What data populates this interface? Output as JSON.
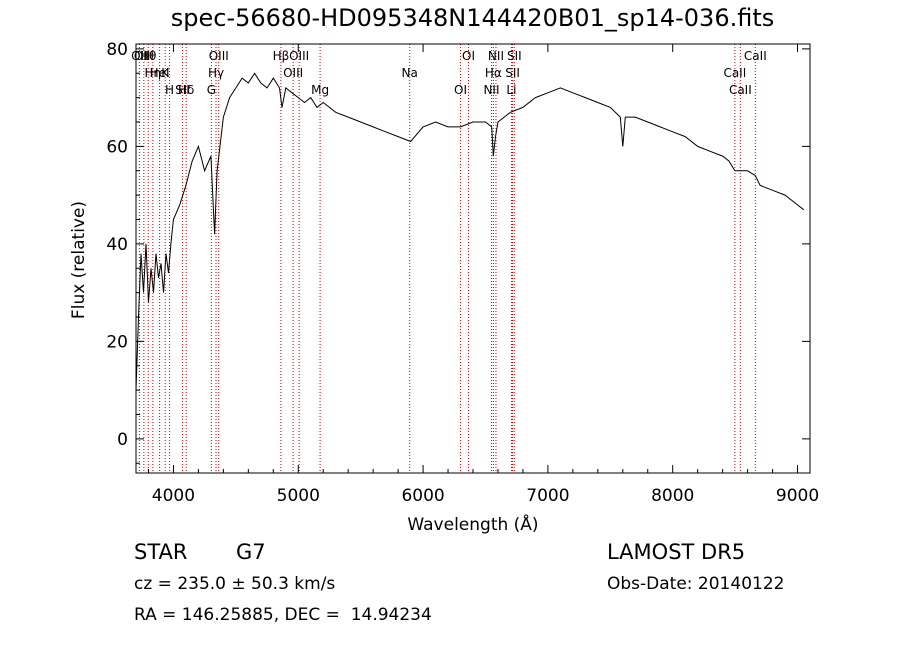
{
  "chart_data": {
    "type": "line",
    "title": "spec-56680-HD095348N144420B01_sp14-036.fits",
    "xlabel": "Wavelength (Å)",
    "ylabel": "Flux (relative)",
    "xlim": [
      3700,
      9100
    ],
    "ylim": [
      -7,
      81
    ],
    "x_ticks": [
      4000,
      5000,
      6000,
      7000,
      8000,
      9000
    ],
    "y_ticks": [
      0,
      20,
      40,
      60,
      80
    ],
    "grid": false,
    "series": [
      {
        "x": [
          3700,
          3720,
          3740,
          3760,
          3780,
          3800,
          3820,
          3840,
          3860,
          3880,
          3900,
          3920,
          3940,
          3960,
          3980,
          4000,
          4050,
          4100,
          4150,
          4200,
          4250,
          4300,
          4330,
          4350,
          4400,
          4450,
          4500,
          4550,
          4600,
          4650,
          4700,
          4750,
          4800,
          4850,
          4870,
          4900,
          4950,
          5000,
          5050,
          5100,
          5150,
          5200,
          5250,
          5300,
          5400,
          5500,
          5600,
          5700,
          5800,
          5900,
          6000,
          6100,
          6200,
          6300,
          6400,
          6500,
          6550,
          6563,
          6580,
          6600,
          6650,
          6700,
          6800,
          6900,
          7000,
          7100,
          7200,
          7300,
          7400,
          7500,
          7580,
          7600,
          7620,
          7700,
          7800,
          7900,
          8000,
          8100,
          8200,
          8300,
          8400,
          8450,
          8498,
          8542,
          8600,
          8662,
          8700,
          8800,
          8900,
          9000,
          9050
        ],
        "values": [
          10,
          25,
          38,
          30,
          40,
          28,
          35,
          30,
          38,
          33,
          36,
          30,
          38,
          34,
          40,
          45,
          48,
          52,
          57,
          60,
          55,
          58,
          42,
          55,
          66,
          70,
          72,
          74,
          73,
          75,
          73,
          72,
          74,
          72,
          68,
          72,
          71,
          70,
          69,
          70,
          68,
          69,
          68,
          67,
          66,
          65,
          64,
          63,
          62,
          61,
          64,
          65,
          64,
          64,
          65,
          65,
          64,
          58,
          62,
          65,
          66,
          67,
          68,
          70,
          71,
          72,
          71,
          70,
          69,
          68,
          66,
          60,
          66,
          66,
          65,
          64,
          63,
          62,
          60,
          59,
          58,
          57,
          55,
          55,
          55,
          54,
          52,
          51,
          50,
          48,
          47
        ]
      }
    ],
    "lines": [
      {
        "label": "Hθ",
        "lambda": 3798
      },
      {
        "label": "K",
        "lambda": 3934
      },
      {
        "label": "Hδ",
        "lambda": 4102
      },
      {
        "label": "OII",
        "lambda": 3727
      },
      {
        "label": "HeI",
        "lambda": 3889
      },
      {
        "label": "SII",
        "lambda": 4072
      },
      {
        "label": "OIII",
        "lambda": 3763
      },
      {
        "label": "Hη",
        "lambda": 3835
      },
      {
        "label": "H",
        "lambda": 3969
      },
      {
        "label": "OIII",
        "lambda": 4363
      },
      {
        "label": "Hγ",
        "lambda": 4341
      },
      {
        "label": "G",
        "lambda": 4304
      },
      {
        "label": "OIII",
        "lambda": 5007
      },
      {
        "label": "OIII",
        "lambda": 4959
      },
      {
        "label": "Mg",
        "lambda": 5175
      },
      {
        "label": "Hβ",
        "lambda": 4861
      },
      {
        "label": "Na",
        "lambda": 5893
      },
      {
        "label": "OI",
        "lambda": 6300
      },
      {
        "label": "OI",
        "lambda": 6364
      },
      {
        "label": "Hα",
        "lambda": 6563
      },
      {
        "label": "NII",
        "lambda": 6548
      },
      {
        "label": "NII",
        "lambda": 6584
      },
      {
        "label": "SII",
        "lambda": 6717
      },
      {
        "label": "Li",
        "lambda": 6708
      },
      {
        "label": "SII",
        "lambda": 6731
      },
      {
        "label": "CaII",
        "lambda": 8498
      },
      {
        "label": "CaII",
        "lambda": 8542
      },
      {
        "label": "CaII",
        "lambda": 8662
      }
    ]
  },
  "footer": {
    "class_label": "STAR",
    "subclass": "G7",
    "survey": "LAMOST DR5",
    "cz": "cz = 235.0 ± 50.3 km/s",
    "obs_date": "Obs-Date: 20140122",
    "radec": "RA = 146.25885, DEC =  14.94234"
  },
  "colors": {
    "axis": "#000000",
    "spectrum": "#000000",
    "line_marker": "#cc0000"
  }
}
